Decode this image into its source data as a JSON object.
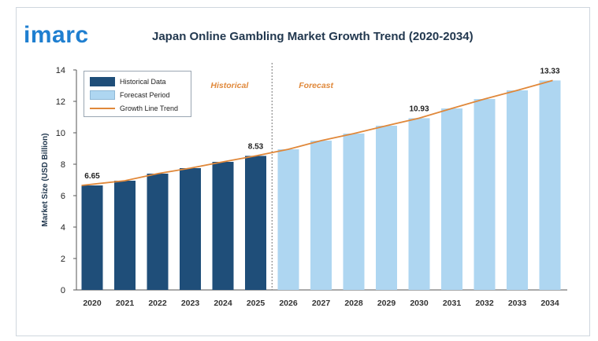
{
  "brand": {
    "logo_text": "imarc"
  },
  "chart_data": {
    "type": "bar",
    "title": "Japan Online Gambling Market Growth Trend (2020-2034)",
    "ylabel": "Market Size (USD Billion)",
    "xlabel": "",
    "ylim": [
      0,
      14
    ],
    "yticks": [
      0,
      2,
      4,
      6,
      8,
      10,
      12,
      14
    ],
    "categories": [
      "2020",
      "2021",
      "2022",
      "2023",
      "2024",
      "2025",
      "2026",
      "2027",
      "2028",
      "2029",
      "2030",
      "2031",
      "2032",
      "2033",
      "2034"
    ],
    "values": [
      6.65,
      6.95,
      7.4,
      7.75,
      8.15,
      8.53,
      8.95,
      9.5,
      9.95,
      10.45,
      10.93,
      11.55,
      12.15,
      12.7,
      13.33
    ],
    "historical_count": 6,
    "data_labels": [
      {
        "category": "2020",
        "text": "6.65"
      },
      {
        "category": "2025",
        "text": "8.53"
      },
      {
        "category": "2030",
        "text": "10.93"
      },
      {
        "category": "2034",
        "text": "13.33"
      }
    ],
    "period_labels": {
      "historical": "Historical",
      "forecast": "Forecast"
    },
    "legend": [
      {
        "label": "Historical Data",
        "kind": "bar",
        "color": "#1f4e79"
      },
      {
        "label": "Forecast Period",
        "kind": "bar",
        "color": "#aed6f1"
      },
      {
        "label": "Growth Line Trend",
        "kind": "line",
        "color": "#e0883a"
      }
    ],
    "legend_position": "top-left",
    "grid": false,
    "colors": {
      "historical": "#1f4e79",
      "forecast": "#aed6f1",
      "trend": "#e0883a",
      "period_text": "#e0883a"
    }
  }
}
